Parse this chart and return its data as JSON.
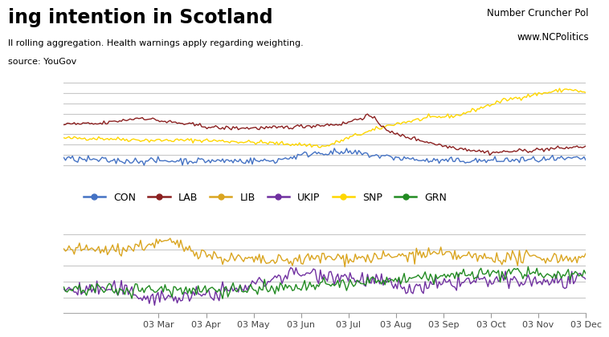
{
  "title": "ing intention in Scotland",
  "subtitle": "ll rolling aggregation. Health warnings apply regarding weighting.",
  "source_line": "source: YouGov",
  "credit_line1": "Number Cruncher Pol",
  "credit_line2": "www.NCPolitics",
  "x_labels": [
    "03 Mar",
    "03 Apr",
    "03 May",
    "03 Jun",
    "03 Jul",
    "03 Aug",
    "03 Sep",
    "03 Oct",
    "03 Nov",
    "03 Dec"
  ],
  "colors": {
    "CON": "#4472C4",
    "LAB": "#8B2020",
    "LIB": "#DAA520",
    "UKIP": "#7030A0",
    "SNP": "#FFD700",
    "GRN": "#228B22"
  },
  "background": "#FFFFFF",
  "grid_color": "#C8C8C8"
}
